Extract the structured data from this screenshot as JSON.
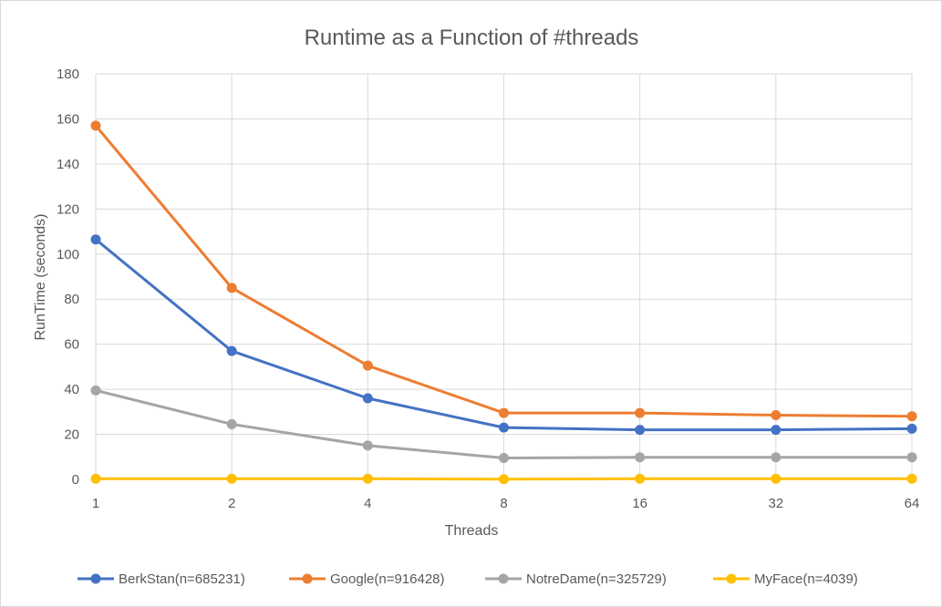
{
  "chart_data": {
    "type": "line",
    "title": "Runtime as a Function of #threads",
    "xlabel": "Threads",
    "ylabel": "RunTime (seconds)",
    "categories": [
      "1",
      "2",
      "4",
      "8",
      "16",
      "32",
      "64"
    ],
    "ylim": [
      0,
      180
    ],
    "yticks": [
      "0",
      "20",
      "40",
      "60",
      "80",
      "100",
      "120",
      "140",
      "160",
      "180"
    ],
    "grid": true,
    "legend_position": "bottom",
    "series": [
      {
        "name": "BerkStan(n=685231)",
        "color": "#4472C4",
        "values": [
          106.5,
          57,
          36,
          23,
          22,
          22,
          22.5
        ]
      },
      {
        "name": "Google(n=916428)",
        "color": "#ED7D31",
        "values": [
          157,
          85,
          50.5,
          29.5,
          29.5,
          28.5,
          28
        ]
      },
      {
        "name": "NotreDame(n=325729)",
        "color": "#A5A5A5",
        "values": [
          39.5,
          24.5,
          15,
          9.5,
          9.8,
          9.8,
          9.8
        ]
      },
      {
        "name": "MyFace(n=4039)",
        "color": "#FFC000",
        "values": [
          0.3,
          0.3,
          0.3,
          0.1,
          0.3,
          0.3,
          0.3
        ]
      }
    ]
  }
}
